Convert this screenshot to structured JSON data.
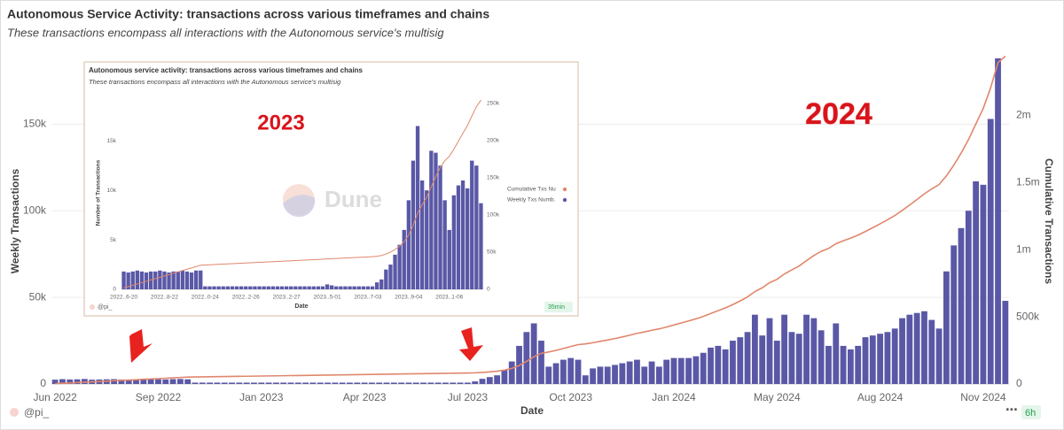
{
  "chart_data": [
    {
      "type": "combo",
      "title": "Autonomous Service Activity: transactions across various timeframes and chains",
      "subtitle": "These transactions encompass all interactions with the Autonomous service's multisig",
      "y_label": "Weekly Transactions",
      "y2_label": "Cumulative Transactions",
      "x_label": "Date",
      "annotations": [
        "2023",
        "2024"
      ],
      "attribution": "@pi_",
      "refresh_badge": "6h",
      "categories": [
        "Jun 2022",
        null,
        null,
        null,
        null,
        null,
        null,
        null,
        null,
        null,
        null,
        null,
        null,
        null,
        "Sep 2022",
        null,
        null,
        null,
        null,
        null,
        null,
        null,
        null,
        null,
        null,
        null,
        null,
        null,
        "Jan 2023",
        null,
        null,
        null,
        null,
        null,
        null,
        null,
        null,
        null,
        null,
        null,
        null,
        null,
        "Apr 2023",
        null,
        null,
        null,
        null,
        null,
        null,
        null,
        null,
        null,
        null,
        null,
        null,
        null,
        "Jul 2023",
        null,
        null,
        null,
        null,
        null,
        null,
        null,
        null,
        null,
        null,
        null,
        null,
        null,
        "Oct 2023",
        null,
        null,
        null,
        null,
        null,
        null,
        null,
        null,
        null,
        null,
        null,
        null,
        null,
        "Jan 2024",
        null,
        null,
        null,
        null,
        null,
        null,
        null,
        null,
        null,
        null,
        null,
        null,
        null,
        "May 2024",
        null,
        null,
        null,
        null,
        null,
        null,
        null,
        null,
        null,
        null,
        null,
        null,
        null,
        "Aug 2024",
        null,
        null,
        null,
        null,
        null,
        null,
        null,
        null,
        null,
        null,
        null,
        null,
        null,
        "Nov 2024",
        null,
        null,
        null
      ],
      "series": [
        {
          "type": "bar",
          "color": "#5a58a6",
          "values": [
            2500,
            2800,
            2600,
            2700,
            2900,
            2500,
            2600,
            2700,
            2800,
            2600,
            2500,
            2700,
            2900,
            2800,
            2700,
            2600,
            2800,
            2900,
            2700,
            800,
            800,
            800,
            800,
            800,
            800,
            800,
            800,
            800,
            800,
            800,
            800,
            800,
            800,
            800,
            800,
            800,
            800,
            800,
            800,
            800,
            800,
            800,
            800,
            800,
            800,
            800,
            800,
            800,
            800,
            800,
            800,
            800,
            800,
            800,
            800,
            800,
            800,
            1500,
            3000,
            4000,
            5000,
            8000,
            13000,
            22000,
            30000,
            35000,
            25000,
            10000,
            12000,
            14000,
            15000,
            14000,
            5000,
            9000,
            10000,
            10000,
            11000,
            12000,
            13000,
            14000,
            10000,
            13000,
            10000,
            14000,
            15000,
            15000,
            15000,
            16000,
            18000,
            21000,
            22000,
            20000,
            25000,
            27000,
            30000,
            40000,
            28000,
            38000,
            25000,
            40000,
            30000,
            29000,
            40000,
            38000,
            31000,
            22000,
            35000,
            22000,
            20000,
            22000,
            27000,
            28000,
            29000,
            30000,
            32000,
            38000,
            40000,
            41000,
            42000,
            37000,
            32000,
            65000,
            80000,
            90000,
            100000,
            117000,
            115000,
            153000,
            188000,
            48000
          ]
        },
        {
          "type": "line",
          "axis": "y2",
          "color": "#e0876d",
          "values": [
            2500,
            5300,
            7900,
            10600,
            13500,
            16000,
            18600,
            21300,
            24100,
            26700,
            29200,
            31900,
            34800,
            37600,
            40300,
            42900,
            45700,
            48600,
            51300,
            52100,
            52900,
            53700,
            54500,
            55300,
            56100,
            56900,
            57700,
            58500,
            59300,
            60100,
            60900,
            61700,
            62500,
            63300,
            64100,
            64900,
            65700,
            66500,
            67300,
            68100,
            68900,
            69700,
            70500,
            71300,
            72100,
            72900,
            73700,
            74500,
            75300,
            76100,
            76900,
            77700,
            78500,
            79300,
            80100,
            80900,
            81700,
            83200,
            86200,
            90200,
            95200,
            103200,
            116200,
            138200,
            168200,
            203200,
            228200,
            238200,
            250200,
            264200,
            279200,
            293200,
            298200,
            307200,
            317200,
            327200,
            338200,
            350200,
            363200,
            377200,
            387200,
            400200,
            410200,
            424200,
            439200,
            454200,
            469200,
            485200,
            503200,
            524200,
            546200,
            566200,
            591200,
            618200,
            648200,
            688200,
            716200,
            754200,
            779200,
            819200,
            849200,
            878200,
            918200,
            956200,
            987200,
            1009200,
            1044200,
            1066200,
            1086200,
            1108200,
            1135200,
            1163200,
            1192200,
            1222200,
            1254200,
            1292200,
            1332200,
            1373200,
            1415200,
            1452200,
            1484200,
            1549200,
            1629200,
            1719200,
            1819200,
            1936200,
            2051200,
            2204200,
            2392200,
            2440200
          ]
        }
      ],
      "ylim": [
        0,
        190000
      ],
      "yticks": [
        0,
        {
          "value": 50000,
          "label": "50k"
        },
        {
          "value": 100000,
          "label": "100k"
        },
        {
          "value": 150000,
          "label": "150k"
        }
      ],
      "y2lim": [
        0,
        2450000
      ],
      "y2ticks": [
        0,
        {
          "value": 500000,
          "label": "500k"
        },
        {
          "value": 1000000,
          "label": "1m"
        },
        {
          "value": 1500000,
          "label": "1.5m"
        },
        {
          "value": 2000000,
          "label": "2m"
        }
      ],
      "grid": true
    },
    {
      "type": "combo",
      "title": "Autonomous service activity: transactions across various timeframes and chains",
      "subtitle": "These transactions encompass all interactions with the Autonomous service's multisig",
      "y_label": "Number of Transactions",
      "x_label": "Date",
      "watermark": "Dune",
      "attribution": "@pi_",
      "refresh_badge": "35min",
      "categories": [
        "2022..6-20",
        null,
        null,
        null,
        null,
        null,
        null,
        null,
        null,
        "2022..8-22",
        null,
        null,
        null,
        null,
        null,
        null,
        null,
        null,
        "2022..0-24",
        null,
        null,
        null,
        null,
        null,
        null,
        null,
        null,
        "2022..2-26",
        null,
        null,
        null,
        null,
        null,
        null,
        null,
        null,
        "2023..2-27",
        null,
        null,
        null,
        null,
        null,
        null,
        null,
        null,
        "2023..5-01",
        null,
        null,
        null,
        null,
        null,
        null,
        null,
        null,
        "2023..7-03",
        null,
        null,
        null,
        null,
        null,
        null,
        null,
        null,
        "2023..9-04",
        null,
        null,
        null,
        null,
        null,
        null,
        null,
        null,
        "2023..1-06",
        null,
        null,
        null,
        null,
        null,
        null,
        null
      ],
      "series": [
        {
          "type": "line",
          "axis": "y2",
          "name": "Cumulative Txs Nu",
          "color": "#e0876d",
          "values": [
            1800,
            3600,
            5400,
            7200,
            9000,
            10800,
            12600,
            14400,
            16200,
            18000,
            19800,
            21600,
            23400,
            25200,
            27000,
            28800,
            30600,
            32400,
            32700,
            33000,
            33300,
            33600,
            33900,
            34200,
            34500,
            34800,
            35100,
            35400,
            35700,
            36000,
            36300,
            36600,
            36900,
            37200,
            37500,
            37800,
            38100,
            38400,
            38700,
            39000,
            39300,
            39600,
            39900,
            40200,
            40500,
            40800,
            41100,
            41400,
            41700,
            42000,
            42300,
            42600,
            42900,
            43200,
            43500,
            43800,
            44500,
            45500,
            47500,
            50000,
            53500,
            58000,
            64000,
            73000,
            86000,
            102500,
            113500,
            123500,
            137500,
            151300,
            163800,
            172800,
            178800,
            188300,
            198800,
            209800,
            220000,
            233000,
            245500,
            254200
          ]
        },
        {
          "type": "bar",
          "name": "Weekly Txs Numb.",
          "color": "#5a58a6",
          "values": [
            1800,
            1700,
            1800,
            1900,
            1800,
            1700,
            1800,
            1800,
            1900,
            1800,
            1700,
            1800,
            1800,
            1900,
            1800,
            1700,
            1900,
            1900,
            300,
            300,
            300,
            300,
            300,
            300,
            300,
            300,
            300,
            300,
            300,
            300,
            300,
            300,
            300,
            300,
            300,
            300,
            300,
            300,
            300,
            300,
            300,
            300,
            300,
            300,
            300,
            500,
            400,
            300,
            300,
            300,
            300,
            300,
            300,
            300,
            300,
            300,
            700,
            1000,
            2000,
            2500,
            3500,
            4500,
            6000,
            9000,
            13000,
            16500,
            11000,
            10000,
            14000,
            13800,
            12500,
            9000,
            6000,
            9500,
            10500,
            11000,
            10200,
            13000,
            12500,
            8700
          ]
        }
      ],
      "ylim": [
        0,
        19400
      ],
      "yticks": [
        0,
        {
          "value": 5000,
          "label": "5k"
        },
        {
          "value": 10000,
          "label": "10k"
        },
        {
          "value": 15000,
          "label": "15k"
        }
      ],
      "y2lim": [
        0,
        258000
      ],
      "y2ticks": [
        0,
        {
          "value": 50000,
          "label": "50k"
        },
        {
          "value": 100000,
          "label": "100k"
        },
        {
          "value": 150000,
          "label": "150k"
        },
        {
          "value": 200000,
          "label": "200k"
        },
        {
          "value": 250000,
          "label": "250k"
        }
      ],
      "grid": false,
      "legend": "right"
    }
  ]
}
